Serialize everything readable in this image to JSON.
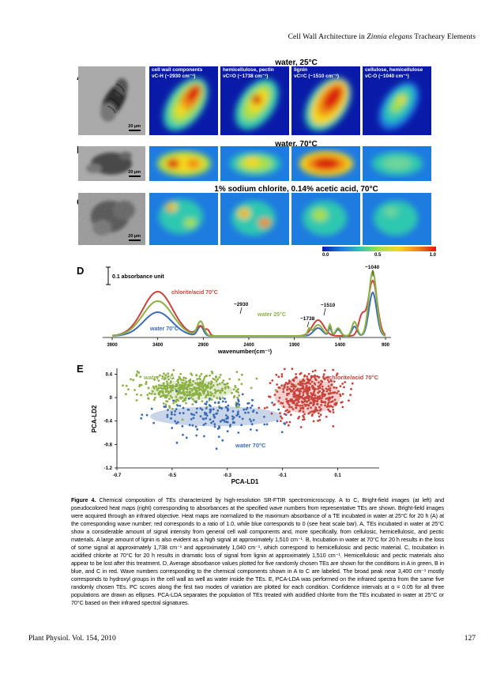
{
  "running_head": {
    "prefix": "Cell Wall Architecture in ",
    "italic": "Zinnia elegans",
    "suffix": " Tracheary Elements"
  },
  "figure": {
    "panel_letters": {
      "a": "A",
      "b": "B",
      "c": "C",
      "d": "D",
      "e": "E"
    },
    "row_titles": {
      "a": "water, 25°C",
      "b": "water, 70°C",
      "c": "1% sodium chlorite, 0.14% acetic acid, 70°C"
    },
    "heatmap_labels": [
      {
        "line1": "cell wall components",
        "line2": "νC-H (~2930 cm⁻¹)"
      },
      {
        "line1": "hemicellulose, pectin",
        "line2": "νC=O (~1738 cm⁻¹)"
      },
      {
        "line1": "lignin",
        "line2": "νC=C (~1510 cm⁻¹)"
      },
      {
        "line1": "cellulose, hemicellulose",
        "line2": "νC-O (~1040 cm⁻¹)"
      }
    ],
    "scale_bar": "20 µm",
    "colorbar": {
      "ticks": [
        "0.0",
        "0.5",
        "1.0"
      ],
      "colors": [
        "#0a1aa8",
        "#1e7be0",
        "#2ec8b0",
        "#a6e04a",
        "#f5d81e",
        "#f08a16",
        "#d91c10"
      ]
    }
  },
  "spectra": {
    "scale_label": "0.1 absorbance unit",
    "xlabel": "wavenumber(cm⁻¹)",
    "x_ticks": [
      "3900",
      "3400",
      "2900",
      "2400",
      "1900",
      "1400",
      "900"
    ],
    "annotations": [
      "~1040",
      "~2930",
      "~1510",
      "~1738"
    ],
    "series_labels": {
      "chlorite": "chlorite/acid 70°C",
      "water25": "water 25°C",
      "water70": "water 70°C"
    },
    "colors": {
      "chlorite": "#c8443c",
      "water25": "#8cb044",
      "water70": "#3c6cb4"
    }
  },
  "chart_data": {
    "type": "scatter",
    "xlabel": "PCA-LD1",
    "ylabel": "PCA-LD2",
    "xlim": [
      -0.7,
      0.25
    ],
    "ylim": [
      -1.2,
      0.5
    ],
    "x_ticks": [
      "-0.7",
      "-0.5",
      "-0.3",
      "-0.1",
      "0.1"
    ],
    "y_ticks": [
      "0.4",
      "0",
      "-0.4",
      "-0.8",
      "-1.2"
    ],
    "series": [
      {
        "name": "water 25°C",
        "color": "#8cb044",
        "center": [
          -0.44,
          0.15
        ],
        "spread": [
          0.1,
          0.13
        ],
        "count": 420,
        "ellipse": {
          "cx": -0.43,
          "cy": 0.13,
          "rx": 0.15,
          "ry": 0.17
        }
      },
      {
        "name": "water 70°C",
        "color": "#3c6cb4",
        "center": [
          -0.34,
          -0.3
        ],
        "spread": [
          0.11,
          0.18
        ],
        "count": 170,
        "ellipse": {
          "cx": -0.34,
          "cy": -0.32,
          "rx": 0.24,
          "ry": 0.17
        }
      },
      {
        "name": "chlorite/acid 70°C",
        "color": "#c8443c",
        "center": [
          -0.01,
          0.05
        ],
        "spread": [
          0.06,
          0.2
        ],
        "count": 460,
        "ellipse": {
          "cx": -0.01,
          "cy": 0.03,
          "rx": 0.12,
          "ry": 0.3
        }
      }
    ]
  },
  "caption": {
    "label": "Figure 4.",
    "text": "Chemical composition of TEs characterized by high-resolution SR-FTIR spectromicroscopy. A to C, Bright-field images (at left) and pseudocolored heat maps (right) corresponding to absorbances at the specified wave numbers from representative TEs are shown. Bright-field images were acquired through an infrared objective. Heat maps are normalized to the maximum absorbance of a TE incubated in water at 25°C for 20 h (A) at the corresponding wave number; red corresponds to a ratio of 1.0, while blue corresponds to 0 (see heat scale bar). A, TEs incubated in water at 25°C show a considerable amount of signal intensity from general cell wall components and, more specifically, from cellulosic, hemicellulosic, and pectic materials. A large amount of lignin is also evident as a high signal at approximately 1,510 cm⁻¹. B, Incubation in water at 70°C for 20 h results in the loss of some signal at approximately 1,738 cm⁻¹ and approximately 1,040 cm⁻¹, which correspond to hemicellulosic and pectic material. C, Incubation in acidified chlorite at 70°C for 20 h results in dramatic loss of signal from lignin at approximately 1,510 cm⁻¹. Hemicellulosic and pectic materials also appear to be lost after this treatment. D, Average absorbance values plotted for five randomly chosen TEs are shown for the conditions in A in green, B in blue, and C in red. Wave numbers corresponding to the chemical components shown in A to C are labeled. The broad peak near 3,400 cm⁻¹ mostly corresponds to hydroxyl groups in the cell wall as well as water inside the TEs. E, PCA-LDA was performed on the infrared spectra from the same five randomly chosen TEs. PC scores along the first two modes of variation are plotted for each condition. Confidence intervals at α = 0.05 for all three populations are drawn as ellipses. PCA-LDA separates the population of TEs treated with acidified chlorite from the TEs incubated in water at 25°C or 70°C based on their infrared spectral signatures."
  },
  "footer": {
    "left": "Plant Physiol. Vol. 154, 2010",
    "right": "127"
  }
}
